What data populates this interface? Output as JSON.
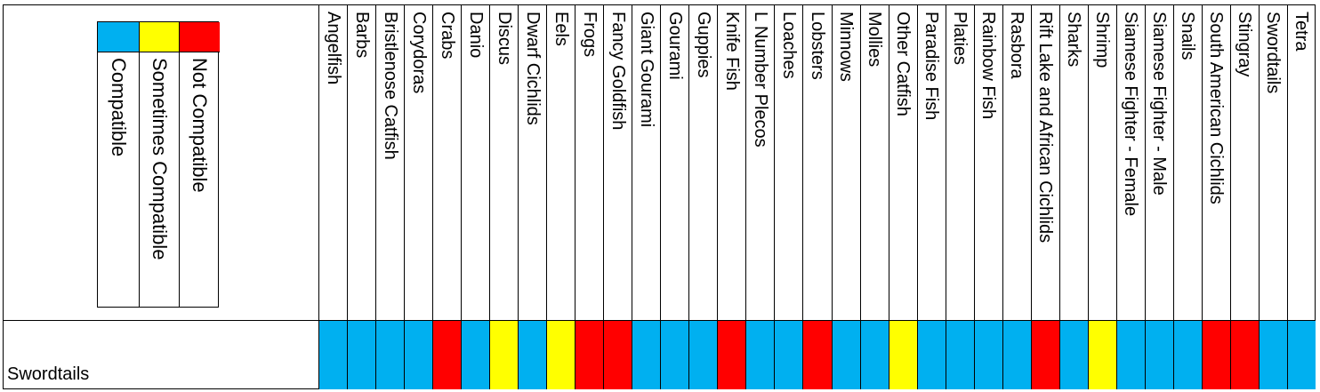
{
  "colors": {
    "compatible": "#00B0F0",
    "sometimes": "#FFFF00",
    "not_compatible": "#FF0000"
  },
  "legend": {
    "items": [
      {
        "label": "Compatible",
        "color": "#00B0F0"
      },
      {
        "label": "Sometimes Compatible",
        "color": "#FFFF00"
      },
      {
        "label": "Not Compatible",
        "color": "#FF0000"
      }
    ]
  },
  "chart_data": {
    "type": "heatmap",
    "row": "Swordtails",
    "columns": [
      "Angelfish",
      "Barbs",
      "Bristlenose Catfish",
      "Corydoras",
      "Crabs",
      "Danio",
      "Discus",
      "Dwarf Cichlids",
      "Eels",
      "Frogs",
      "Fancy Goldfish",
      "Giant Gourami",
      "Gourami",
      "Guppies",
      "Knife Fish",
      "L Number Plecos",
      "Loaches",
      "Lobsters",
      "Minnows",
      "Mollies",
      "Other Catfish",
      "Paradise Fish",
      "Platies",
      "Rainbow Fish",
      "Rasbora",
      "Rift Lake and African Cichlids",
      "Sharks",
      "Shrimp",
      "Siamese Fighter - Female",
      "Siamese Fighter - Male",
      "Snails",
      "South American Cichlids",
      "Stingray",
      "Swordtails",
      "Tetra"
    ],
    "values": [
      "Compatible",
      "Compatible",
      "Compatible",
      "Compatible",
      "Not Compatible",
      "Compatible",
      "Sometimes Compatible",
      "Compatible",
      "Sometimes Compatible",
      "Not Compatible",
      "Not Compatible",
      "Compatible",
      "Compatible",
      "Compatible",
      "Not Compatible",
      "Compatible",
      "Compatible",
      "Not Compatible",
      "Compatible",
      "Compatible",
      "Sometimes Compatible",
      "Compatible",
      "Compatible",
      "Compatible",
      "Compatible",
      "Not Compatible",
      "Compatible",
      "Sometimes Compatible",
      "Compatible",
      "Compatible",
      "Compatible",
      "Not Compatible",
      "Not Compatible",
      "Compatible",
      "Compatible"
    ]
  }
}
